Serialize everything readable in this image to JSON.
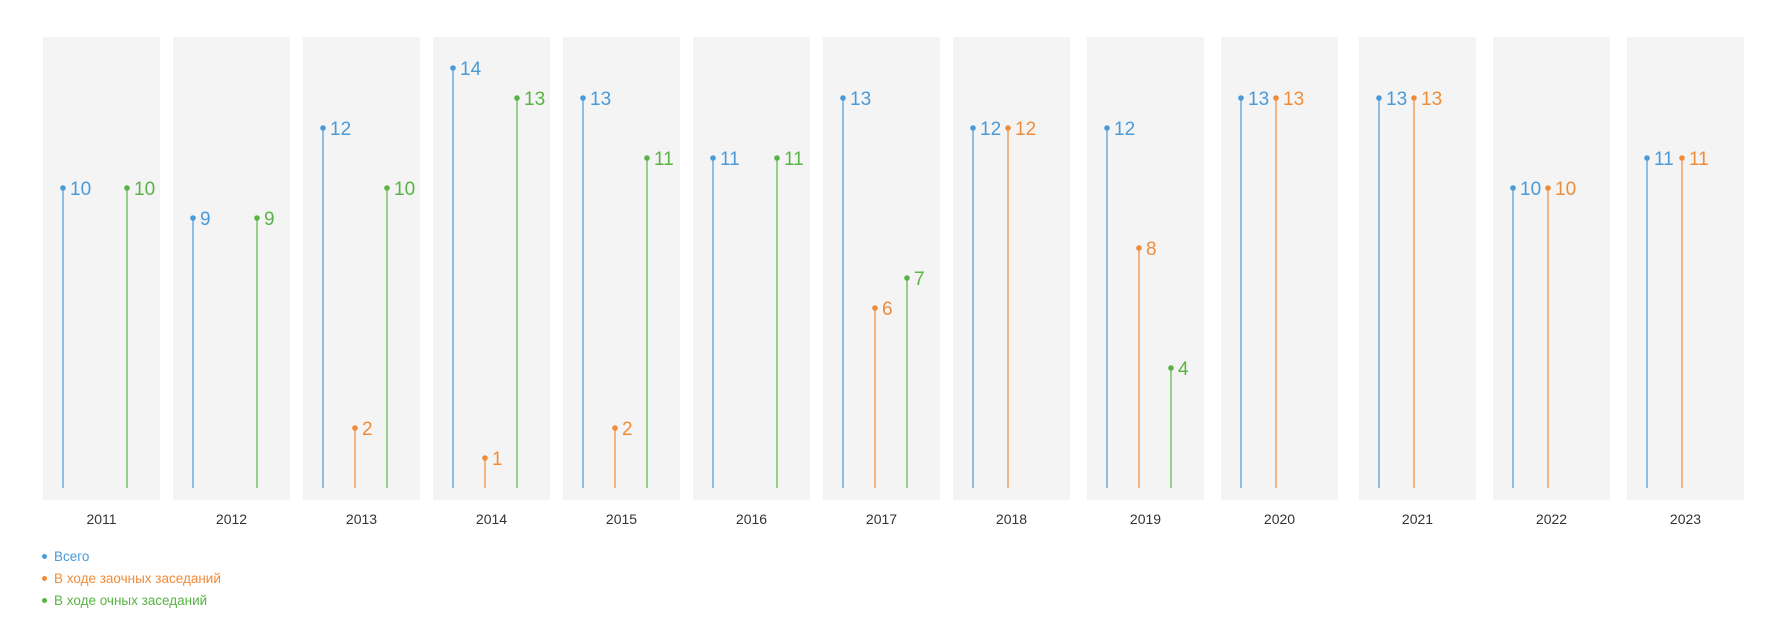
{
  "chart_data": {
    "type": "lollipop",
    "categories": [
      "2011",
      "2012",
      "2013",
      "2014",
      "2015",
      "2016",
      "2017",
      "2018",
      "2019",
      "2020",
      "2021",
      "2022",
      "2023"
    ],
    "series": [
      {
        "name": "Всего",
        "color": "#4a9ad8",
        "values": [
          10,
          9,
          12,
          14,
          13,
          11,
          13,
          12,
          12,
          13,
          13,
          10,
          11
        ]
      },
      {
        "name": "В ходе заочных заседаний",
        "color": "#ef8c3a",
        "values": [
          null,
          null,
          2,
          1,
          2,
          null,
          6,
          12,
          8,
          13,
          13,
          10,
          11
        ]
      },
      {
        "name": "В ходе очных заседаний",
        "color": "#58b444",
        "values": [
          10,
          9,
          10,
          13,
          11,
          11,
          7,
          null,
          4,
          null,
          null,
          null,
          null
        ]
      }
    ],
    "ylim": [
      0,
      14
    ],
    "legend_position": "bottom-left",
    "grid": false
  }
}
